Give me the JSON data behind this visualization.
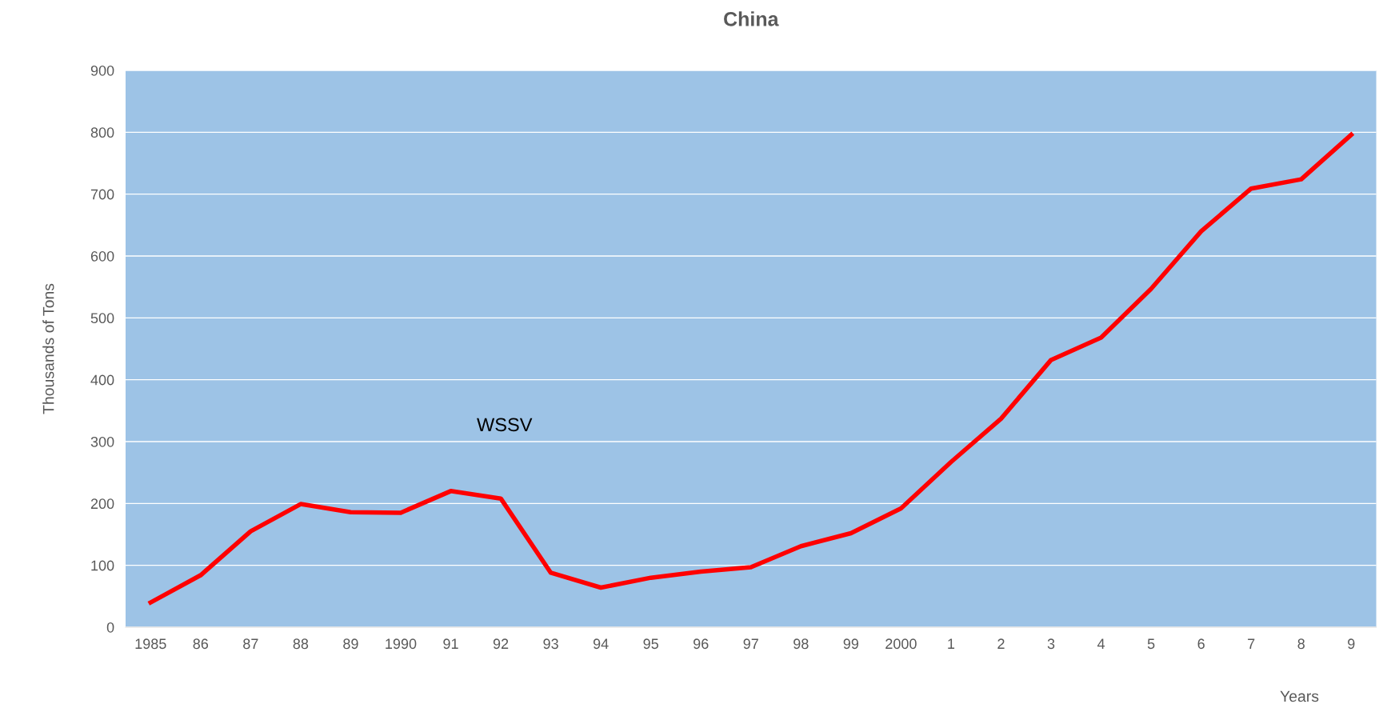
{
  "chart_data": {
    "type": "line",
    "title": "China",
    "xlabel": "Years",
    "ylabel": "Thousands of Tons",
    "categories": [
      "1985",
      "86",
      "87",
      "88",
      "89",
      "1990",
      "91",
      "92",
      "93",
      "94",
      "95",
      "96",
      "97",
      "98",
      "99",
      "2000",
      "1",
      "2",
      "3",
      "4",
      "5",
      "6",
      "7",
      "8",
      "9"
    ],
    "series": [
      {
        "color": "#ff0000",
        "values": [
          40,
          84,
          155,
          199,
          186,
          185,
          220,
          208,
          88,
          64,
          80,
          90,
          97,
          131,
          152,
          192,
          267,
          337,
          432,
          468,
          547,
          640,
          709,
          724,
          796
        ]
      }
    ],
    "ylim": [
      0,
      900
    ],
    "yticks": [
      0,
      100,
      200,
      300,
      400,
      500,
      600,
      700,
      800,
      900
    ],
    "grid": "y",
    "legend": false,
    "marker": "none",
    "line_style": "solid",
    "annotations": [
      "WSSV"
    ]
  }
}
